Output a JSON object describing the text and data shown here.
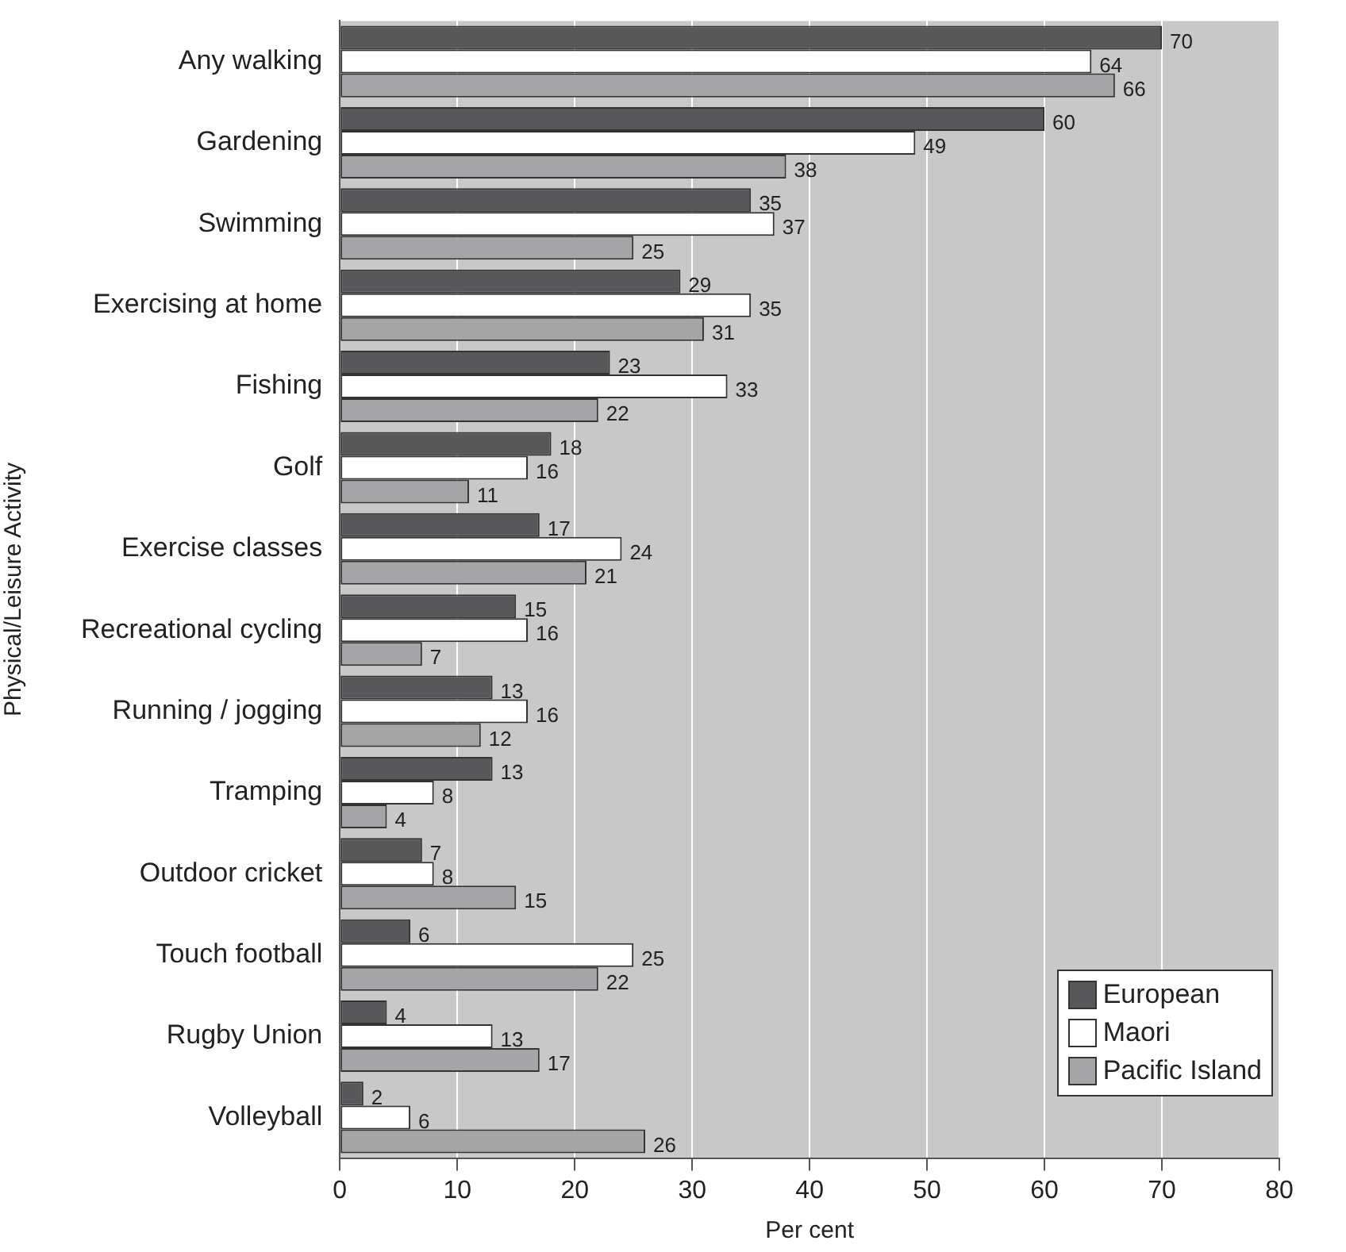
{
  "chart_data": {
    "type": "bar",
    "orientation": "horizontal",
    "xlabel": "Per cent",
    "ylabel": "Physical/Leisure Activity",
    "categories": [
      "Any walking",
      "Gardening",
      "Swimming",
      "Exercising at home",
      "Fishing",
      "Golf",
      "Exercise classes",
      "Recreational cycling",
      "Running / jogging",
      "Tramping",
      "Outdoor cricket",
      "Touch football",
      "Rugby Union",
      "Volleyball"
    ],
    "series": [
      {
        "name": "European",
        "color": "#58585a",
        "values": [
          70,
          60,
          35,
          29,
          23,
          18,
          17,
          15,
          13,
          13,
          7,
          6,
          4,
          2
        ]
      },
      {
        "name": "Maori",
        "color": "#ffffff",
        "values": [
          64,
          49,
          37,
          35,
          33,
          16,
          24,
          16,
          16,
          8,
          8,
          25,
          13,
          6
        ]
      },
      {
        "name": "Pacific Island",
        "color": "#a5a5a8",
        "values": [
          66,
          38,
          25,
          31,
          22,
          11,
          21,
          7,
          12,
          4,
          15,
          22,
          17,
          26
        ]
      }
    ],
    "xlim": [
      0,
      80
    ],
    "xticks": [
      0,
      10,
      20,
      30,
      40,
      50,
      60,
      70,
      80
    ],
    "grid": "x",
    "legend": "bottom right",
    "data_labels": true
  }
}
